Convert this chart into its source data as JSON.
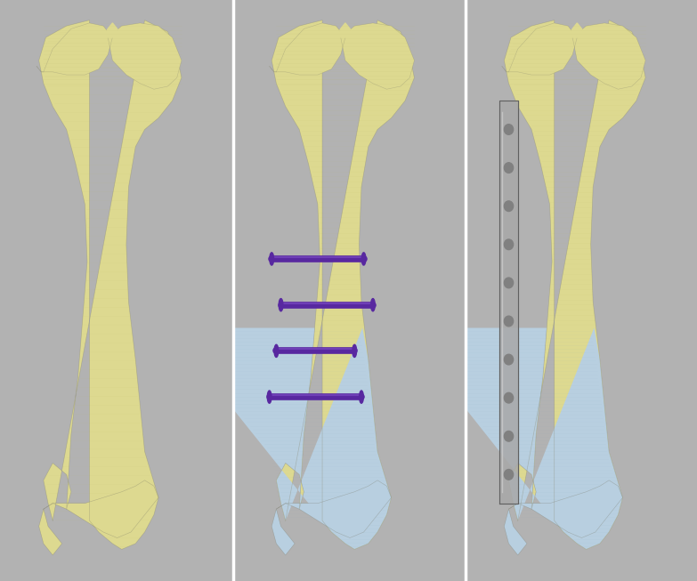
{
  "background_color": "#b2b2b2",
  "panel_bg": "#b2b2b2",
  "bone_yellow": "#ddd990",
  "bone_yellow_light": "#eee8b0",
  "bone_yellow_dark": "#b8b460",
  "bone_yellow_shadow": "#c8c278",
  "bone_blue": "#b8cfe0",
  "bone_blue_light": "#cfe0ee",
  "bone_blue_dark": "#88a8c0",
  "bone_blue_shadow": "#a0bcd0",
  "screw_color": "#5828a0",
  "screw_highlight": "#8050c8",
  "plate_color": "#a8a8a8",
  "plate_highlight": "#d0d0d0",
  "divider_color": "#ffffff",
  "figsize": [
    7.83,
    6.53
  ],
  "dpi": 100
}
